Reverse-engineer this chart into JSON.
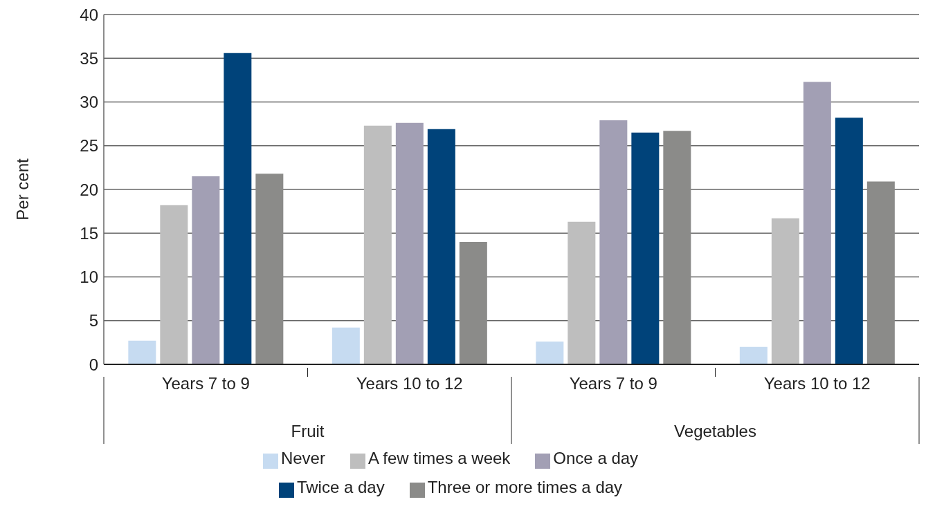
{
  "chart_data": {
    "type": "bar",
    "ylabel": "Per cent",
    "categories": [
      "Years 7 to 9",
      "Years 10 to 12",
      "Years 7 to 9",
      "Years 10 to 12"
    ],
    "annotations": [
      "Fruit",
      "Vegetables"
    ],
    "series": [
      {
        "name": "Never",
        "color": "#c6dbf1",
        "values": [
          2.7,
          4.2,
          2.6,
          2.0
        ]
      },
      {
        "name": "A few times a week",
        "color": "#bebebe",
        "values": [
          18.2,
          27.3,
          16.3,
          16.7
        ]
      },
      {
        "name": "Once a day",
        "color": "#a29fb4",
        "values": [
          21.5,
          27.6,
          27.9,
          32.3
        ]
      },
      {
        "name": "Twice a day",
        "color": "#00437a",
        "values": [
          35.6,
          26.9,
          26.5,
          28.2
        ]
      },
      {
        "name": "Three or more times a day",
        "color": "#8b8b89",
        "values": [
          21.8,
          14.0,
          26.7,
          20.9
        ]
      }
    ],
    "ylim": [
      0,
      40
    ],
    "yticks": [
      0,
      5,
      10,
      15,
      20,
      25,
      30,
      35,
      40
    ],
    "grid": "y",
    "legend": "bottom"
  }
}
